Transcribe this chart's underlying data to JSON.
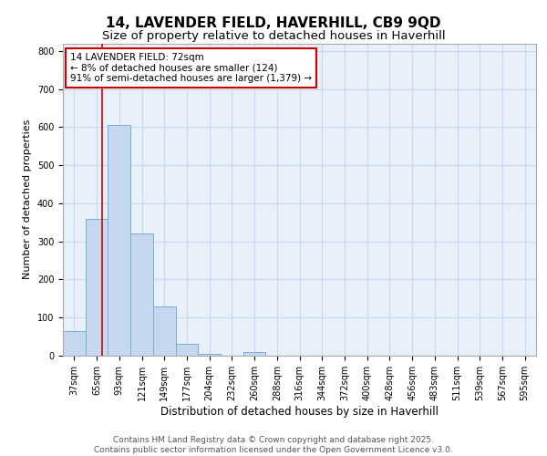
{
  "title_line1": "14, LAVENDER FIELD, HAVERHILL, CB9 9QD",
  "title_line2": "Size of property relative to detached houses in Haverhill",
  "xlabel": "Distribution of detached houses by size in Haverhill",
  "ylabel": "Number of detached properties",
  "categories": [
    "37sqm",
    "65sqm",
    "93sqm",
    "121sqm",
    "149sqm",
    "177sqm",
    "204sqm",
    "232sqm",
    "260sqm",
    "288sqm",
    "316sqm",
    "344sqm",
    "372sqm",
    "400sqm",
    "428sqm",
    "456sqm",
    "483sqm",
    "511sqm",
    "539sqm",
    "567sqm",
    "595sqm"
  ],
  "bar_values": [
    65,
    360,
    605,
    320,
    130,
    30,
    5,
    0,
    10,
    0,
    0,
    0,
    0,
    0,
    0,
    0,
    0,
    0,
    0,
    0,
    0
  ],
  "bar_color": "#c5d8f0",
  "bar_edge_color": "#7aaed4",
  "grid_color": "#c8d8ee",
  "plot_bg_color": "#e8f0fa",
  "fig_bg_color": "#ffffff",
  "vline_color": "#cc0000",
  "vline_x_index": 1.25,
  "annotation_text": "14 LAVENDER FIELD: 72sqm\n← 8% of detached houses are smaller (124)\n91% of semi-detached houses are larger (1,379) →",
  "annotation_box_facecolor": "#ffffff",
  "annotation_box_edgecolor": "#cc0000",
  "ylim": [
    0,
    820
  ],
  "yticks": [
    0,
    100,
    200,
    300,
    400,
    500,
    600,
    700,
    800
  ],
  "footer_text": "Contains HM Land Registry data © Crown copyright and database right 2025.\nContains public sector information licensed under the Open Government Licence v3.0.",
  "title_fontsize": 11,
  "subtitle_fontsize": 9.5,
  "xlabel_fontsize": 8.5,
  "ylabel_fontsize": 8,
  "tick_fontsize": 7,
  "annot_fontsize": 7.5,
  "footer_fontsize": 6.5
}
